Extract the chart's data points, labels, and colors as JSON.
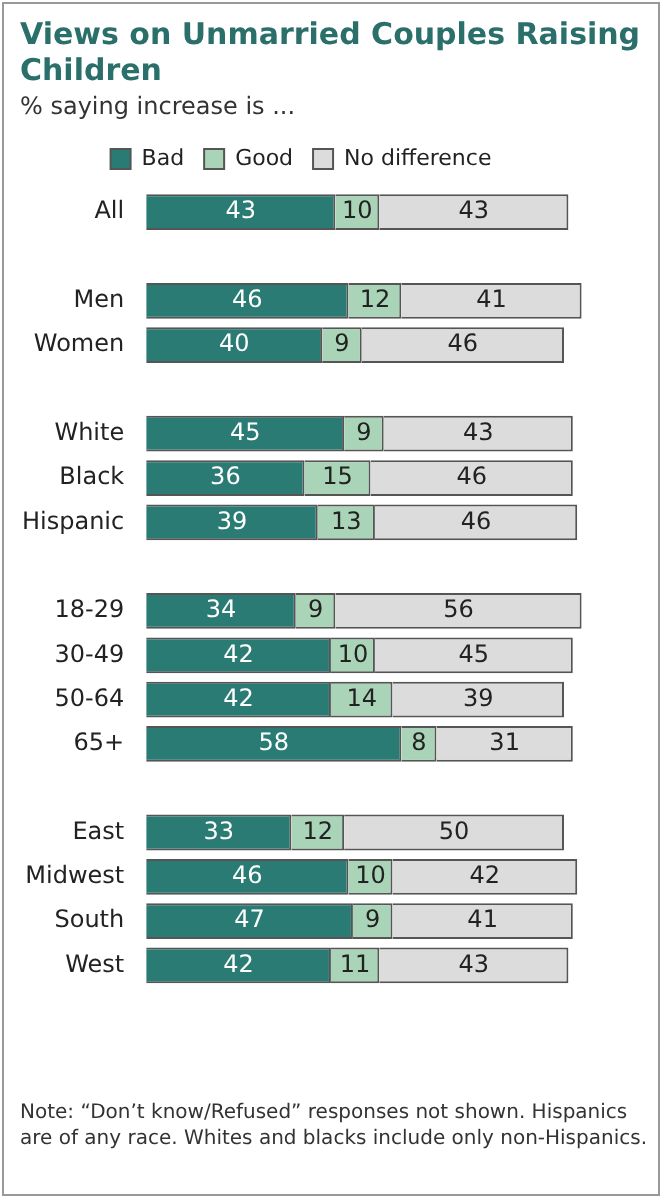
{
  "chart_data": {
    "type": "bar",
    "orientation": "horizontal",
    "stacked": true,
    "title": "Views on Unmarried Couples Raising Children",
    "subtitle": "% saying increase is ...",
    "categories": [
      "All",
      null,
      "Men",
      "Women",
      null,
      "White",
      "Black",
      "Hispanic",
      null,
      "18-29",
      "30-49",
      "50-64",
      "65+",
      null,
      "East",
      "Midwest",
      "South",
      "West"
    ],
    "series": [
      {
        "name": "Bad",
        "color": "#2a7b74",
        "values": [
          43,
          null,
          46,
          40,
          null,
          45,
          36,
          39,
          null,
          34,
          42,
          42,
          58,
          null,
          33,
          46,
          47,
          42
        ]
      },
      {
        "name": "Good",
        "color": "#a9d4b8",
        "values": [
          10,
          null,
          12,
          9,
          null,
          9,
          15,
          13,
          null,
          9,
          10,
          14,
          8,
          null,
          12,
          10,
          9,
          11
        ]
      },
      {
        "name": "No difference",
        "color": "#dcdcdc",
        "values": [
          43,
          null,
          41,
          46,
          null,
          43,
          46,
          46,
          null,
          56,
          45,
          39,
          31,
          null,
          50,
          42,
          41,
          43
        ]
      }
    ],
    "xlim": [
      0,
      100
    ],
    "tick_labels": "y",
    "data_labels": true,
    "legend": "top",
    "annotations": [
      "Note: “Don’t know/Refused” responses not shown. Hispanics are of any race. Whites and blacks include only non-Hispanics."
    ]
  }
}
